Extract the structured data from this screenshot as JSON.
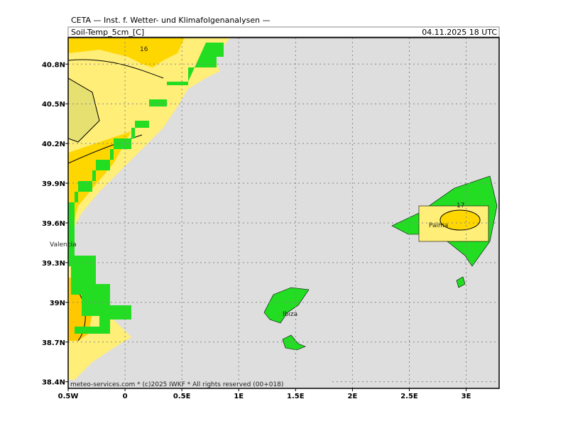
{
  "header": {
    "title": "CETA — Inst. f. Wetter- und Klimafolgenanalysen —",
    "product": "Soil-Temp_5cm_[C]",
    "valid": "04.11.2025 18 UTC"
  },
  "map": {
    "lon_range": [
      -0.5,
      3.29
    ],
    "lat_range": [
      38.35,
      41.0
    ],
    "lon_ticks": [
      {
        "value": -0.5,
        "label": "0.5W"
      },
      {
        "value": 0,
        "label": "0"
      },
      {
        "value": 0.5,
        "label": "0.5E"
      },
      {
        "value": 1,
        "label": "1E"
      },
      {
        "value": 1.5,
        "label": "1.5E"
      },
      {
        "value": 2,
        "label": "2E"
      },
      {
        "value": 2.5,
        "label": "2.5E"
      },
      {
        "value": 3,
        "label": "3E"
      }
    ],
    "lat_ticks": [
      {
        "value": 40.8,
        "label": "40.8N"
      },
      {
        "value": 40.5,
        "label": "40.5N"
      },
      {
        "value": 40.2,
        "label": "40.2N"
      },
      {
        "value": 39.9,
        "label": "39.9N"
      },
      {
        "value": 39.6,
        "label": "39.6N"
      },
      {
        "value": 39.3,
        "label": "39.3N"
      },
      {
        "value": 39,
        "label": "39N"
      },
      {
        "value": 38.7,
        "label": "38.7N"
      },
      {
        "value": 38.4,
        "label": "38.4N"
      }
    ],
    "places": [
      "Valencia",
      "Palma",
      "Ibiza"
    ],
    "contour_labels": [
      "16",
      "17"
    ]
  },
  "footer": "meteo-services.com * (c)2025 IWKF * All rights reserved (00+018)"
}
